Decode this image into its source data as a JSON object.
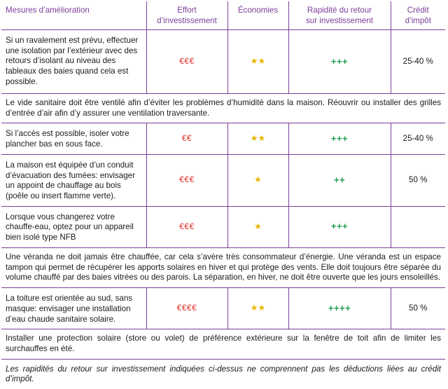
{
  "headers": {
    "measures": "Mesures d’amélioration",
    "effort": [
      "Effort",
      "d’investissement"
    ],
    "savings": "Économies",
    "payback": [
      "Rapidité du retour",
      "sur investissement"
    ],
    "credit": [
      "Crédit",
      "d’impôt"
    ]
  },
  "rows": [
    {
      "measure": "Si un ravalement est prévu, effectuer une isolation par l’extérieur avec des retours d’isolant au niveau des tableaux des baies quand cela est possible.",
      "effort": "€€€",
      "savings": "★★",
      "payback": "+++",
      "credit": "25-40 %"
    },
    {
      "note": "Le vide sanitaire doit être ventilé afin d’éviter les problèmes d’humidité dans la maison. Réouvrir ou installer des grilles d’entrée d’air afin d’y assurer une ventilation traversante."
    },
    {
      "measure": "Si l’accès est possible, isoler votre plancher bas en sous face.",
      "effort": "€€",
      "savings": "★★",
      "payback": "+++",
      "credit": "25-40 %"
    },
    {
      "measure": "La maison est équipée d’un conduit d’évacuation des fumées: envisager un appoint de chauffage au bois (poêle ou insert flamme verte).",
      "effort": "€€€",
      "savings": "★",
      "payback": "++",
      "credit": "50 %"
    },
    {
      "measure": "Lorsque vous changerez votre chauffe-eau, optez pour un appareil bien isolé type NFB",
      "effort": "€€€",
      "savings": "★",
      "payback": "+++",
      "credit": ""
    },
    {
      "note": "Une véranda ne doit jamais être chauffée, car cela s’avère très consommateur d’énergie. Une véranda est un espace tampon qui permet de récupérer les apports solaires en hiver et qui protège des vents. Elle doit toujours être séparée du volume chauffé par des baies vitrées ou des parois. La séparation, en hiver, ne doit être ouverte que les jours ensoleillés."
    },
    {
      "measure": "La toiture est orientée au sud, sans masque: envisager une installation d’eau chaude sanitaire solaire.",
      "effort": "€€€€",
      "savings": "★★",
      "payback": "++++",
      "credit": "50 %"
    },
    {
      "note": "Installer une protection solaire (store ou volet) de préférence extérieure sur la fenêtre de toit afin de limiter les surchauffes en été."
    }
  ],
  "footnote": "Les rapidités du retour sur investissement indiquées ci-dessus ne comprennent pas les déductions liées au crédit d’impôt.",
  "colors": {
    "accent": "#7b3f98",
    "euro": "#e0312c",
    "star": "#e8b600",
    "plus": "#1e9e50"
  }
}
